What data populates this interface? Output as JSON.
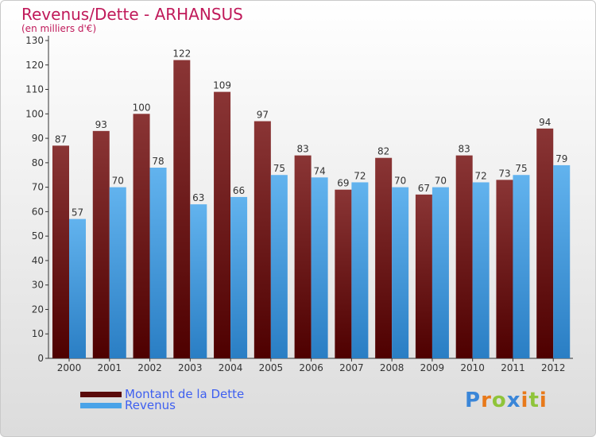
{
  "header": {
    "title": "Revenus/Dette - ARHANSUS",
    "subtitle": "(en milliers d'€)"
  },
  "colors": {
    "dette_top": "#8a3535",
    "dette_bottom": "#4e0000",
    "revenus_top": "#62b3ee",
    "revenus_bottom": "#2a7ec4",
    "title": "#c01a5a",
    "legend_text": "#3e5ff0"
  },
  "chart_data": {
    "type": "bar",
    "title": "Revenus/Dette - ARHANSUS",
    "subtitle": "(en milliers d'€)",
    "categories": [
      "2000",
      "2001",
      "2002",
      "2003",
      "2004",
      "2005",
      "2006",
      "2007",
      "2008",
      "2009",
      "2010",
      "2011",
      "2012"
    ],
    "series": [
      {
        "name": "Montant de la Dette",
        "values": [
          87,
          93,
          100,
          122,
          109,
          97,
          83,
          69,
          82,
          67,
          83,
          73,
          94
        ]
      },
      {
        "name": "Revenus",
        "values": [
          57,
          70,
          78,
          63,
          66,
          75,
          74,
          72,
          70,
          70,
          72,
          75,
          79
        ]
      }
    ],
    "yticks": [
      "0",
      "10",
      "20",
      "30",
      "40",
      "50",
      "60",
      "70",
      "80",
      "90",
      "100",
      "110",
      "120",
      "130"
    ],
    "ylim": [
      0,
      130
    ],
    "grid": false,
    "legend_position": "bottom-left"
  },
  "legend": {
    "items": [
      {
        "label": "Montant de la Dette"
      },
      {
        "label": "Revenus"
      }
    ]
  },
  "logo": {
    "letters": [
      "P",
      "r",
      "o",
      "x",
      "i",
      "t",
      "i"
    ],
    "letter_colors": [
      "#3a86d8",
      "#e8791a",
      "#8fc43a",
      "#3a86d8",
      "#e8791a",
      "#8fc43a",
      "#e8791a"
    ]
  }
}
